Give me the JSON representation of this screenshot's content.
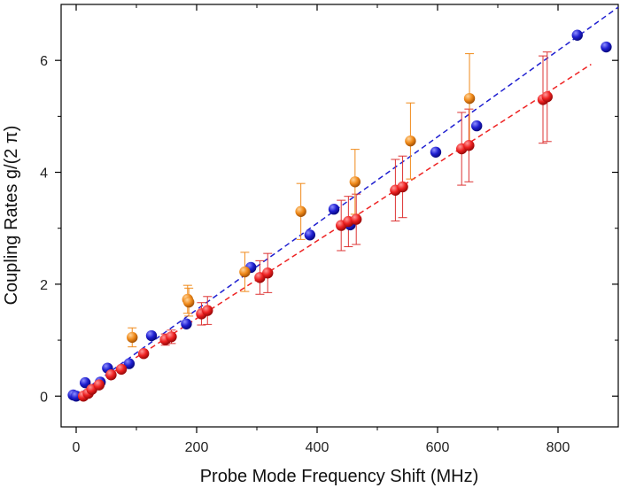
{
  "chart_data": {
    "type": "scatter",
    "title": "",
    "xlabel": "Probe Mode Frequency Shift (MHz)",
    "ylabel": "Coupling Rates g/(2 π)",
    "xlim": [
      -25,
      900
    ],
    "ylim": [
      -0.55,
      7.0
    ],
    "xticks": [
      0,
      200,
      400,
      600,
      800
    ],
    "yticks": [
      0,
      2,
      4,
      6
    ],
    "grid": false,
    "legend": "none",
    "series": [
      {
        "color": "#1f1fd0",
        "points": [
          [
            -5,
            0.02
          ],
          [
            0,
            0.0
          ],
          [
            15,
            0.24
          ],
          [
            40,
            0.25
          ],
          [
            52,
            0.5
          ],
          [
            88,
            0.58
          ],
          [
            125,
            1.08
          ],
          [
            183,
            1.29
          ],
          [
            290,
            2.3
          ],
          [
            388,
            2.88
          ],
          [
            428,
            3.34
          ],
          [
            455,
            3.06
          ],
          [
            597,
            4.36
          ],
          [
            665,
            4.83
          ],
          [
            832,
            6.45
          ],
          [
            880,
            6.24
          ]
        ]
      },
      {
        "color": "#ee2222",
        "points": [
          [
            12,
            0.0,
            0.05
          ],
          [
            20,
            0.05,
            0.05
          ],
          [
            26,
            0.12,
            0.05
          ],
          [
            38,
            0.2,
            0.05
          ],
          [
            58,
            0.38,
            0.05
          ],
          [
            75,
            0.48,
            0.06
          ],
          [
            112,
            0.76,
            0.07
          ],
          [
            148,
            1.01,
            0.1
          ],
          [
            158,
            1.06,
            0.12
          ],
          [
            208,
            1.47,
            0.2
          ],
          [
            218,
            1.53,
            0.25
          ],
          [
            305,
            2.12,
            0.3
          ],
          [
            318,
            2.2,
            0.35
          ],
          [
            440,
            3.05,
            0.45
          ],
          [
            452,
            3.12,
            0.45
          ],
          [
            465,
            3.16,
            0.45
          ],
          [
            530,
            3.68,
            0.55
          ],
          [
            542,
            3.74,
            0.55
          ],
          [
            640,
            4.42,
            0.65
          ],
          [
            652,
            4.48,
            0.65
          ],
          [
            775,
            5.3,
            0.78
          ],
          [
            782,
            5.35,
            0.8
          ]
        ]
      },
      {
        "color": "#f08a1a",
        "points": [
          [
            93,
            1.05,
            0.17
          ],
          [
            185,
            1.73,
            0.25
          ],
          [
            187,
            1.68,
            0.25
          ],
          [
            280,
            2.22,
            0.35
          ],
          [
            373,
            3.3,
            0.5
          ],
          [
            463,
            3.83,
            0.58
          ],
          [
            555,
            4.56,
            0.68
          ],
          [
            653,
            5.32,
            0.8
          ]
        ]
      }
    ],
    "fit_lines": [
      {
        "color": "#1f1fd0",
        "x": [
          0,
          900
        ],
        "y": [
          0,
          6.95
        ]
      },
      {
        "color": "#ee2222",
        "x": [
          0,
          855
        ],
        "y": [
          0,
          5.93
        ]
      }
    ]
  }
}
